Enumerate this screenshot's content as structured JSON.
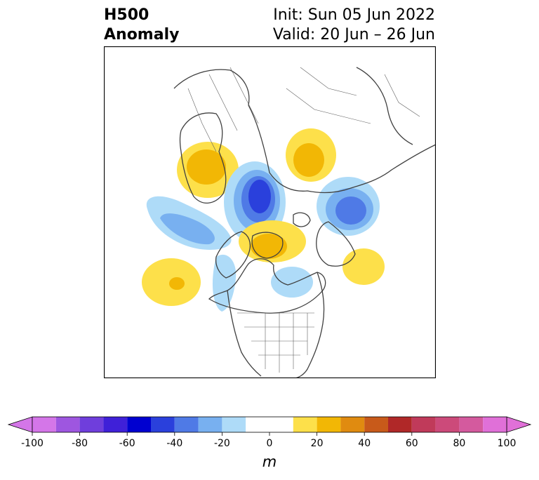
{
  "header": {
    "title_line1": "H500",
    "title_line2": "Anomaly",
    "init": "Init: Sun 05 Jun 2022",
    "valid": "Valid: 20 Jun – 26 Jun"
  },
  "colorbar": {
    "units": "m",
    "ticks": [
      "-100",
      "-80",
      "-60",
      "-40",
      "-20",
      "0",
      "20",
      "40",
      "60",
      "80",
      "100"
    ],
    "bin_edges": [
      -100,
      -90,
      -80,
      -70,
      -60,
      -50,
      -40,
      -30,
      -20,
      -10,
      10,
      20,
      30,
      40,
      50,
      60,
      70,
      80,
      90,
      100
    ],
    "colors": [
      "#d476e8",
      "#9e56e0",
      "#6f3edc",
      "#3f20d8",
      "#0000d0",
      "#2a40dc",
      "#4f7ae6",
      "#78b0f0",
      "#aedbf8",
      "#ffffff",
      "#fde04a",
      "#f2b705",
      "#e08b10",
      "#c85a1a",
      "#b02828",
      "#c03a5a",
      "#cc4a7a",
      "#d45a9e",
      "#e070d8"
    ],
    "under_color": "#d476e8",
    "over_color": "#e070d8"
  },
  "map": {
    "projection": "north-polar-stereographic",
    "anomaly_centers": [
      {
        "region": "Eastern Europe / Scandinavia",
        "sign": "positive",
        "max_m": 30
      },
      {
        "region": "Western Siberia",
        "sign": "negative",
        "min_m": -60
      },
      {
        "region": "Central Siberia",
        "sign": "positive",
        "max_m": 25
      },
      {
        "region": "Northeast Siberia",
        "sign": "negative",
        "min_m": -40
      },
      {
        "region": "Canadian Arctic Archipelago",
        "sign": "positive",
        "max_m": 30
      },
      {
        "region": "North Atlantic",
        "sign": "negative",
        "min_m": -30
      },
      {
        "region": "Central North Atlantic",
        "sign": "positive",
        "max_m": 30
      },
      {
        "region": "North Pacific",
        "sign": "positive",
        "max_m": 20
      },
      {
        "region": "Hudson Bay",
        "sign": "negative",
        "min_m": -20
      }
    ]
  }
}
